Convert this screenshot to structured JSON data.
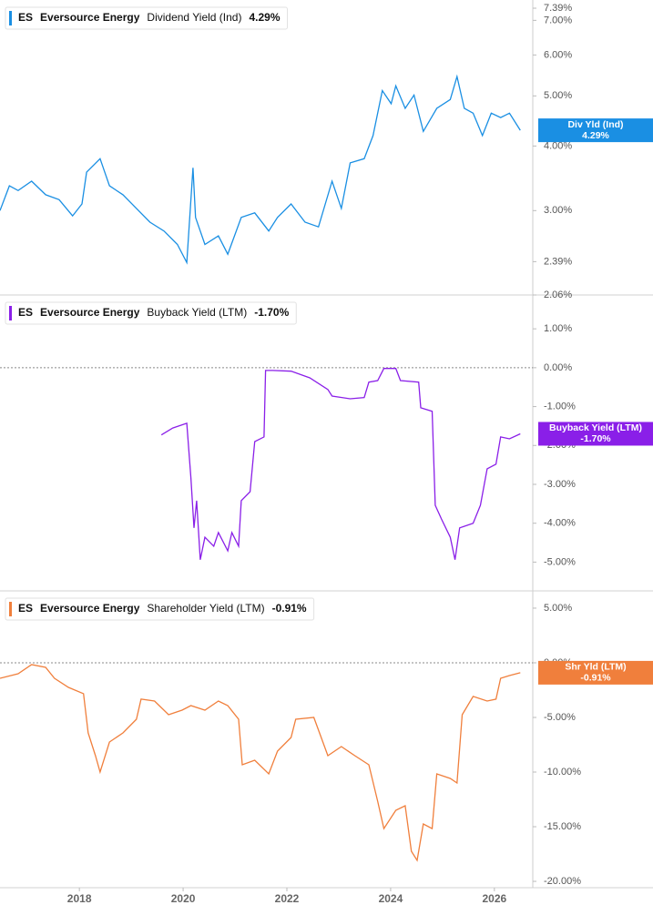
{
  "chart_data": [
    {
      "type": "line",
      "ticker": "ES",
      "company": "Eversource Energy",
      "log_scale": true,
      "xlim": [
        2016.47,
        2026.74
      ],
      "ylim": [
        2.06,
        7.39
      ],
      "yticks": [
        {
          "value": 7.39,
          "label": "7.39%"
        },
        {
          "value": 7,
          "label": "7.00%"
        },
        {
          "value": 6,
          "label": "6.00%"
        },
        {
          "value": 5,
          "label": "5.00%"
        },
        {
          "value": 4,
          "label": "4.00%"
        },
        {
          "value": 3,
          "label": "3.00%"
        },
        {
          "value": 2.39,
          "label": "2.39%"
        },
        {
          "value": 2.06,
          "label": "2.06%"
        }
      ],
      "series": [
        {
          "name": "Dividend Yield (Ind)",
          "color": "#1a8fe3",
          "x": [
            2016.47,
            2016.65,
            2016.82,
            2017.08,
            2017.35,
            2017.61,
            2017.87,
            2018.05,
            2018.14,
            2018.4,
            2018.58,
            2018.84,
            2019.1,
            2019.36,
            2019.63,
            2019.89,
            2020.07,
            2020.19,
            2020.24,
            2020.42,
            2020.68,
            2020.86,
            2021.12,
            2021.38,
            2021.65,
            2021.82,
            2022.08,
            2022.35,
            2022.61,
            2022.87,
            2023.05,
            2023.22,
            2023.49,
            2023.66,
            2023.84,
            2024.01,
            2024.1,
            2024.28,
            2024.45,
            2024.63,
            2024.89,
            2025.15,
            2025.28,
            2025.42,
            2025.59,
            2025.77,
            2025.94,
            2026.12,
            2026.29,
            2026.5
          ],
          "values": [
            3.0,
            3.35,
            3.28,
            3.42,
            3.22,
            3.15,
            2.93,
            3.09,
            3.56,
            3.78,
            3.35,
            3.22,
            3.03,
            2.85,
            2.74,
            2.58,
            2.38,
            3.63,
            2.91,
            2.58,
            2.68,
            2.47,
            2.91,
            2.97,
            2.74,
            2.91,
            3.09,
            2.85,
            2.79,
            3.42,
            3.03,
            3.71,
            3.78,
            4.19,
            5.12,
            4.83,
            5.23,
            4.73,
            5.02,
            4.27,
            4.73,
            4.92,
            5.45,
            4.73,
            4.63,
            4.19,
            4.63,
            4.54,
            4.63,
            4.29
          ]
        }
      ],
      "current": {
        "value": 4.29,
        "label": "4.29%"
      },
      "tag": "Div Yld (Ind)"
    },
    {
      "type": "line",
      "ticker": "ES",
      "company": "Eversource Energy",
      "log_scale": false,
      "xlim": [
        2016.47,
        2026.74
      ],
      "ylim": [
        -5.74,
        1.87
      ],
      "reference_line": 0,
      "yticks": [
        {
          "value": 1,
          "label": "1.00%"
        },
        {
          "value": 0,
          "label": "0.00%"
        },
        {
          "value": -1,
          "label": "-1.00%"
        },
        {
          "value": -2,
          "label": "-2.00%"
        },
        {
          "value": -3,
          "label": "-3.00%"
        },
        {
          "value": -4,
          "label": "-4.00%"
        },
        {
          "value": -5,
          "label": "-5.00%"
        }
      ],
      "series": [
        {
          "name": "Buyback Yield (LTM)",
          "color": "#8a1fe8",
          "x": [
            2019.58,
            2019.8,
            2020.07,
            2020.15,
            2020.21,
            2020.26,
            2020.33,
            2020.42,
            2020.59,
            2020.68,
            2020.86,
            2020.94,
            2021.07,
            2021.12,
            2021.29,
            2021.38,
            2021.56,
            2021.59,
            2021.73,
            2022.08,
            2022.44,
            2022.79,
            2022.87,
            2023.22,
            2023.49,
            2023.58,
            2023.75,
            2023.87,
            2024.1,
            2024.19,
            2024.54,
            2024.58,
            2024.8,
            2024.86,
            2024.98,
            2025.15,
            2025.24,
            2025.33,
            2025.59,
            2025.73,
            2025.86,
            2026.03,
            2026.12,
            2026.29,
            2026.5
          ],
          "values": [
            -1.73,
            -1.55,
            -1.43,
            -2.83,
            -4.12,
            -3.42,
            -4.94,
            -4.36,
            -4.59,
            -4.24,
            -4.71,
            -4.24,
            -4.59,
            -3.42,
            -3.19,
            -1.9,
            -1.78,
            -0.07,
            -0.07,
            -0.09,
            -0.26,
            -0.56,
            -0.73,
            -0.8,
            -0.77,
            -0.37,
            -0.33,
            -0.02,
            -0.02,
            -0.33,
            -0.37,
            -1.03,
            -1.12,
            -3.54,
            -3.89,
            -4.36,
            -4.94,
            -4.12,
            -4.0,
            -3.54,
            -2.6,
            -2.48,
            -1.78,
            -1.83,
            -1.7
          ]
        }
      ],
      "current": {
        "value": -1.7,
        "label": "-1.70%"
      },
      "tag": "Buyback Yield (LTM)"
    },
    {
      "type": "line",
      "ticker": "ES",
      "company": "Eversource Energy",
      "log_scale": false,
      "xlim": [
        2016.47,
        2026.74
      ],
      "ylim": [
        -20.58,
        6.58
      ],
      "reference_line": 0,
      "xticks": [
        2018,
        2020,
        2022,
        2024,
        2026
      ],
      "yticks": [
        {
          "value": 5,
          "label": "5.00%"
        },
        {
          "value": 0,
          "label": "0.00%"
        },
        {
          "value": -5,
          "label": "-5.00%"
        },
        {
          "value": -10,
          "label": "-10.00%"
        },
        {
          "value": -15,
          "label": "-15.00%"
        },
        {
          "value": -20,
          "label": "-20.00%"
        }
      ],
      "series": [
        {
          "name": "Shareholder Yield (LTM)",
          "color": "#f07f3c",
          "x": [
            2016.47,
            2016.82,
            2017.08,
            2017.35,
            2017.52,
            2017.79,
            2018.08,
            2018.17,
            2018.31,
            2018.4,
            2018.58,
            2018.84,
            2019.1,
            2019.19,
            2019.45,
            2019.72,
            2019.98,
            2020.15,
            2020.42,
            2020.68,
            2020.86,
            2021.07,
            2021.14,
            2021.38,
            2021.65,
            2021.82,
            2022.08,
            2022.17,
            2022.52,
            2022.79,
            2023.05,
            2023.31,
            2023.58,
            2023.75,
            2023.87,
            2024.1,
            2024.28,
            2024.4,
            2024.51,
            2024.63,
            2024.8,
            2024.89,
            2025.15,
            2025.28,
            2025.38,
            2025.59,
            2025.86,
            2026.03,
            2026.12,
            2026.29,
            2026.5
          ],
          "values": [
            -1.42,
            -1.0,
            -0.17,
            -0.42,
            -1.42,
            -2.25,
            -2.83,
            -6.42,
            -8.5,
            -10.0,
            -7.25,
            -6.42,
            -5.17,
            -3.33,
            -3.5,
            -4.75,
            -4.33,
            -3.92,
            -4.33,
            -3.5,
            -3.92,
            -5.17,
            -9.33,
            -8.92,
            -10.17,
            -8.08,
            -6.83,
            -5.17,
            -5.0,
            -8.5,
            -7.67,
            -8.5,
            -9.33,
            -12.67,
            -15.17,
            -13.5,
            -13.08,
            -17.25,
            -18.08,
            -14.75,
            -15.17,
            -10.17,
            -10.58,
            -11.0,
            -4.75,
            -3.08,
            -3.5,
            -3.33,
            -1.42,
            -1.17,
            -0.91
          ]
        }
      ],
      "current": {
        "value": -0.91,
        "label": "-0.91%"
      },
      "tag": "Shr Yld (LTM)"
    }
  ]
}
